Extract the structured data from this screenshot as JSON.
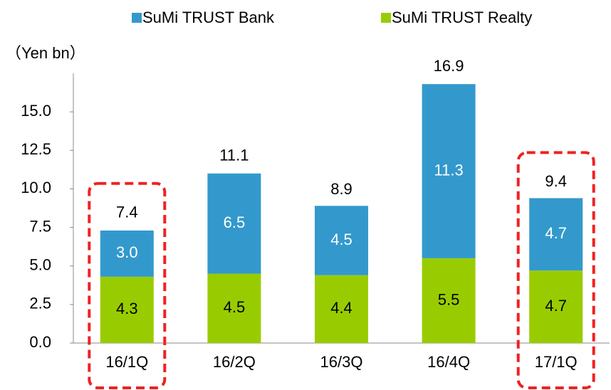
{
  "chart_data": {
    "type": "stacked_bar",
    "y_axis_label": "（Yen bn）",
    "categories": [
      "16/1Q",
      "16/2Q",
      "16/3Q",
      "16/4Q",
      "17/1Q"
    ],
    "series": [
      {
        "name": "SuMi TRUST Realty",
        "color": "#99cc00",
        "label_color": "#000000",
        "values": [
          4.3,
          4.5,
          4.4,
          5.5,
          4.7
        ]
      },
      {
        "name": "SuMi TRUST Bank",
        "color": "#3399cc",
        "label_color": "#ffffff",
        "values": [
          3.0,
          6.5,
          4.5,
          11.3,
          4.7
        ],
        "value_labels": [
          "3.0",
          "6.5",
          "4.5",
          "11.3",
          "4.7"
        ]
      }
    ],
    "totals": [
      7.4,
      11.1,
      8.9,
      16.9,
      9.4
    ],
    "highlighted": [
      0,
      4
    ],
    "highlight_color": "#ee2222",
    "ylim": [
      0,
      17.5
    ],
    "yticks": [
      {
        "value": 0,
        "label": "0.0"
      },
      2.5,
      {
        "value": 5,
        "label": "5.0"
      },
      7.5,
      {
        "value": 10,
        "label": "10.0"
      },
      12.5,
      {
        "value": 15,
        "label": "15.0"
      }
    ],
    "legend": "top"
  }
}
